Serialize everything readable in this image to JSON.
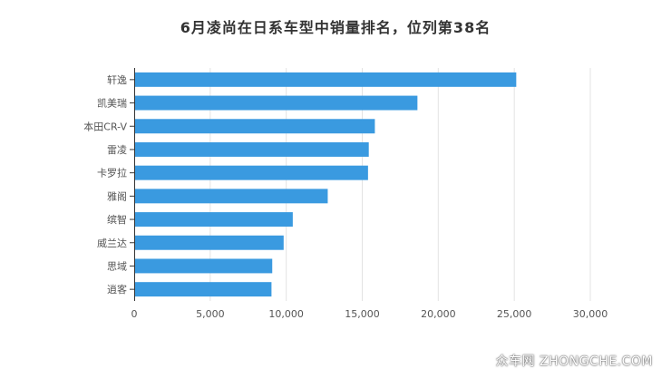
{
  "chart_data": {
    "type": "bar",
    "orientation": "horizontal",
    "title": "6月凌尚在日系车型中销量排名，位列第38名",
    "categories": [
      "轩逸",
      "凯美瑞",
      "本田CR-V",
      "雷凌",
      "卡罗拉",
      "雅阁",
      "缤智",
      "威兰达",
      "思域",
      "逍客"
    ],
    "values": [
      25100,
      18600,
      15800,
      15400,
      15350,
      12700,
      10400,
      9800,
      9050,
      9000
    ],
    "xlim": [
      0,
      30000
    ],
    "xticks": [
      0,
      5000,
      10000,
      15000,
      20000,
      25000,
      30000
    ],
    "xtick_labels": [
      "0",
      "5,000",
      "10,000",
      "15,000",
      "20,000",
      "25,000",
      "30,000"
    ],
    "grid": true,
    "bar_color": "#3a9ae0"
  },
  "watermark": "众车网 ZHONGCHE.COM"
}
